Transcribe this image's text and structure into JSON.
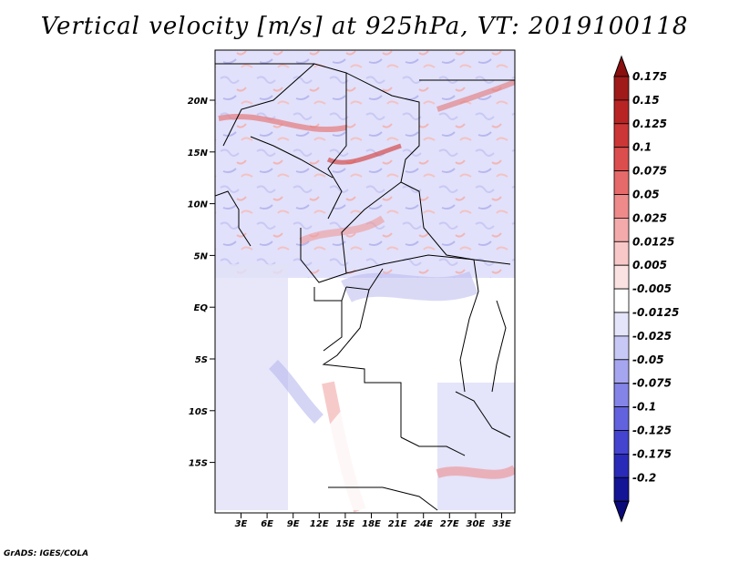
{
  "title": "Vertical velocity [m/s] at 925hPa, VT: 2019100118",
  "credit": "GrADS: IGES/COLA",
  "lat_ticks": [
    "20N",
    "15N",
    "10N",
    "5N",
    "EQ",
    "5S",
    "10S",
    "15S"
  ],
  "lon_ticks": [
    "3E",
    "6E",
    "9E",
    "12E",
    "15E",
    "18E",
    "21E",
    "24E",
    "27E",
    "30E",
    "33E"
  ],
  "colorbar": {
    "levels": [
      {
        "label": "0.175",
        "color": "#a01a1a"
      },
      {
        "label": "0.15",
        "color": "#b82424"
      },
      {
        "label": "0.125",
        "color": "#cc3636"
      },
      {
        "label": "0.1",
        "color": "#dc4e4e"
      },
      {
        "label": "0.075",
        "color": "#e66a6a"
      },
      {
        "label": "0.05",
        "color": "#ee8a8a"
      },
      {
        "label": "0.025",
        "color": "#f4aaaa"
      },
      {
        "label": "0.0125",
        "color": "#f8c8c8"
      },
      {
        "label": "0.005",
        "color": "#fbe2e2"
      },
      {
        "label": "-0.005",
        "color": "#ffffff"
      },
      {
        "label": "-0.0125",
        "color": "#e4e4fb"
      },
      {
        "label": "-0.025",
        "color": "#c8c8f6"
      },
      {
        "label": "-0.05",
        "color": "#a6a6f0"
      },
      {
        "label": "-0.075",
        "color": "#8484e8"
      },
      {
        "label": "-0.1",
        "color": "#6262de"
      },
      {
        "label": "-0.125",
        "color": "#4444d0"
      },
      {
        "label": "-0.175",
        "color": "#2a2ab8"
      },
      {
        "label": "-0.2",
        "color": "#141496"
      }
    ],
    "top_color": "#8a1010",
    "bottom_color": "#0a0a7a"
  }
}
